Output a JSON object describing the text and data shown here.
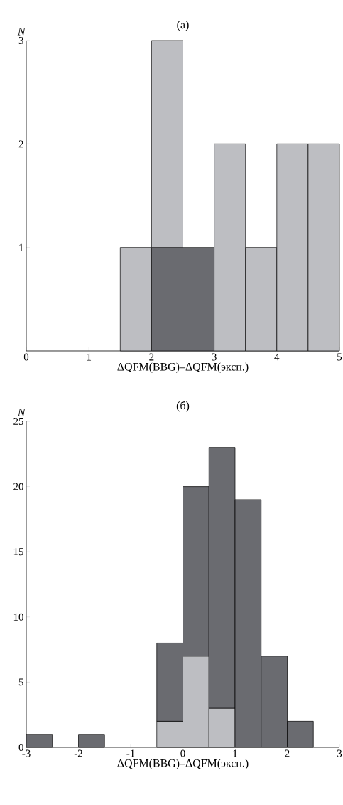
{
  "chart_data": [
    {
      "type": "bar",
      "title": "(a)",
      "xlabel": "ΔQFM(BBG)–ΔQFM(эксп.)",
      "ylabel": "N",
      "stacked": true,
      "x": [
        1.75,
        2.25,
        2.75,
        3.25,
        3.75,
        4.25,
        4.75
      ],
      "series": [
        {
          "color": "#6a6b70",
          "values": [
            0,
            1,
            1,
            0,
            0,
            0,
            0
          ]
        },
        {
          "color": "#bdbec2",
          "values": [
            1,
            2,
            0,
            2,
            1,
            2,
            2
          ]
        }
      ],
      "xlim": [
        0,
        5
      ],
      "xticks": [
        0,
        1,
        2,
        3,
        4,
        5
      ],
      "ylim": [
        0,
        3
      ],
      "yticks": [
        1,
        2,
        3
      ]
    },
    {
      "type": "bar",
      "title": "(б)",
      "xlabel": "ΔQFM(BBG)–ΔQFM(эксп.)",
      "ylabel": "N",
      "stacked": true,
      "x": [
        -2.75,
        -2.25,
        -1.75,
        -1.25,
        -0.75,
        -0.25,
        0.25,
        0.75,
        1.25,
        1.75,
        2.25
      ],
      "series": [
        {
          "color": "#bdbec2",
          "values": [
            0,
            0,
            0,
            0,
            0,
            2,
            7,
            3,
            0,
            0,
            0
          ]
        },
        {
          "color": "#6a6b70",
          "values": [
            1,
            0,
            1,
            0,
            0,
            6,
            13,
            20,
            19,
            7,
            2
          ]
        }
      ],
      "xlim": [
        -3,
        3
      ],
      "xticks": [
        -3,
        -2,
        -1,
        0,
        1,
        2,
        3
      ],
      "ylim": [
        0,
        25
      ],
      "yticks": [
        0,
        5,
        10,
        15,
        20,
        25
      ]
    }
  ]
}
